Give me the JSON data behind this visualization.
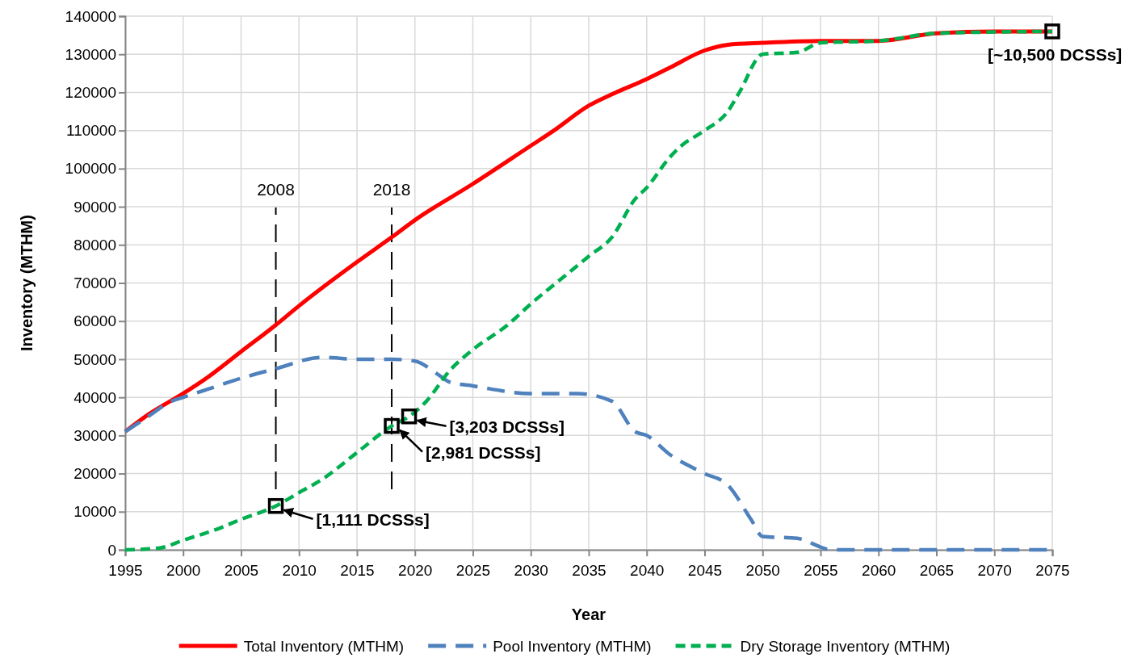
{
  "chart_data": {
    "type": "line",
    "xlabel": "Year",
    "ylabel": "Inventory (MTHM)",
    "xlim": [
      1995,
      2075
    ],
    "xticks": [
      1995,
      2000,
      2005,
      2010,
      2015,
      2020,
      2025,
      2030,
      2035,
      2040,
      2045,
      2050,
      2055,
      2060,
      2065,
      2070,
      2075
    ],
    "ylim": [
      0,
      140000
    ],
    "yticks": [
      0,
      10000,
      20000,
      30000,
      40000,
      50000,
      60000,
      70000,
      80000,
      90000,
      100000,
      110000,
      120000,
      130000,
      140000
    ],
    "grid": true,
    "legend": "bottom",
    "marker": "none",
    "series": [
      {
        "name": "Total Inventory (MTHM)",
        "color": "#ff0000",
        "line_style": "solid",
        "x": [
          1995,
          1997,
          2000,
          2002,
          2005,
          2008,
          2010,
          2015,
          2018,
          2020,
          2025,
          2030,
          2032,
          2035,
          2037,
          2040,
          2042,
          2045,
          2047,
          2050,
          2055,
          2060,
          2065,
          2070,
          2075
        ],
        "values": [
          31000,
          35500,
          41000,
          45000,
          52000,
          59000,
          64000,
          75500,
          82000,
          86500,
          96000,
          106000,
          110000,
          116500,
          119500,
          123500,
          126500,
          131000,
          132500,
          133000,
          133500,
          133500,
          135500,
          136000,
          136000
        ]
      },
      {
        "name": "Pool Inventory (MTHM)",
        "color": "#4f81bd",
        "line_style": "dashed",
        "x": [
          1995,
          1997,
          1999,
          2000,
          2002,
          2005,
          2008,
          2012,
          2015,
          2018,
          2020,
          2022,
          2023,
          2025,
          2030,
          2034,
          2037,
          2039,
          2040,
          2042,
          2045,
          2047,
          2049,
          2050,
          2053,
          2056,
          2060,
          2075
        ],
        "values": [
          31000,
          35000,
          39000,
          40000,
          42000,
          45000,
          47500,
          50500,
          50000,
          50000,
          49500,
          46000,
          44000,
          43000,
          41000,
          41000,
          39000,
          31000,
          30000,
          25000,
          20000,
          17000,
          8000,
          3500,
          3000,
          0,
          0,
          0
        ]
      },
      {
        "name": "Dry Storage Inventory (MTHM)",
        "color": "#00b050",
        "line_style": "dotted",
        "x": [
          1995,
          1998,
          2000,
          2003,
          2005,
          2008,
          2010,
          2012,
          2015,
          2018,
          2019.5,
          2021,
          2023,
          2025,
          2028,
          2030,
          2033,
          2035,
          2037,
          2039,
          2040,
          2042,
          2043,
          2045,
          2047,
          2048,
          2050,
          2053,
          2055,
          2060,
          2065,
          2075
        ],
        "values": [
          0,
          500,
          2500,
          5500,
          8000,
          11500,
          15000,
          18500,
          25500,
          32500,
          35000,
          39000,
          47000,
          52500,
          59000,
          64500,
          72000,
          77000,
          82000,
          92000,
          95000,
          103000,
          106000,
          110000,
          115000,
          120000,
          130000,
          130500,
          133000,
          133500,
          135500,
          136000
        ]
      }
    ],
    "ref_lines": [
      {
        "axis": "x",
        "value": 2008,
        "label": "2008",
        "line_style": "dashed",
        "color": "#000000"
      },
      {
        "axis": "x",
        "value": 2018,
        "label": "2018",
        "line_style": "dashed",
        "color": "#000000"
      }
    ],
    "annotations": [
      {
        "text": "[1,111 DCSSs]",
        "x": 2008,
        "y": 11500
      },
      {
        "text": "[2,981 DCSSs]",
        "x": 2018,
        "y": 32500
      },
      {
        "text": "[3,203 DCSSs]",
        "x": 2019.5,
        "y": 35000
      },
      {
        "text": "[~10,500 DCSSs]",
        "x": 2075,
        "y": 136000
      }
    ]
  }
}
